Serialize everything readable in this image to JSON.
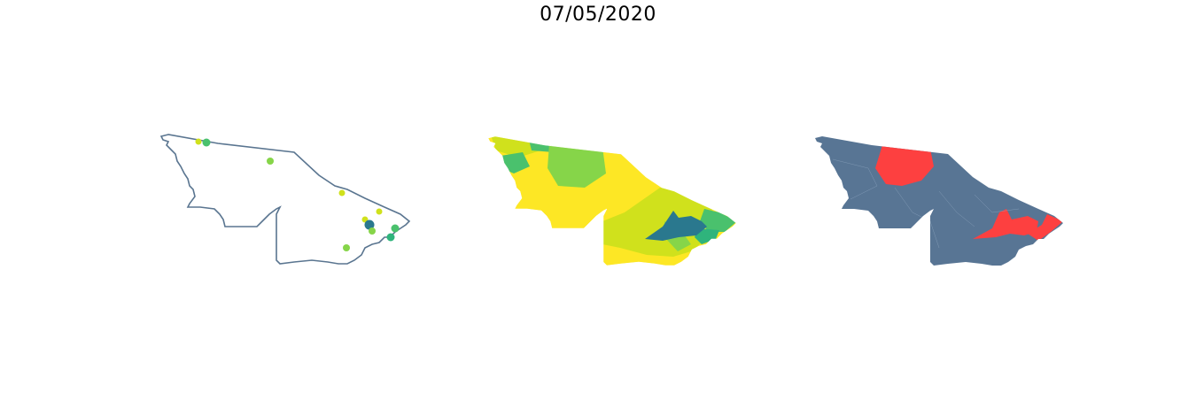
{
  "title": "07/05/2020",
  "colors": {
    "outline": "#5a7590",
    "yellow": "#fde725",
    "yellow_green": "#d0e11c",
    "light_green": "#86d549",
    "green": "#4ac16d",
    "teal_green": "#2fb47c",
    "dark_teal": "#2a788e",
    "slate": "#587594",
    "red": "#fd4040"
  },
  "panels": [
    {
      "name": "point-map",
      "description": ""
    },
    {
      "name": "choropleth-map",
      "description": ""
    },
    {
      "name": "highlight-map",
      "description": ""
    }
  ],
  "point_markers": [
    {
      "level": "yellow_green"
    },
    {
      "level": "green"
    },
    {
      "level": "light_green"
    },
    {
      "level": "yellow_green"
    },
    {
      "level": "yellow_green"
    },
    {
      "level": "yellow_green"
    },
    {
      "level": "dark_teal"
    },
    {
      "level": "light_green"
    },
    {
      "level": "green"
    },
    {
      "level": "teal_green"
    },
    {
      "level": "light_green"
    }
  ]
}
